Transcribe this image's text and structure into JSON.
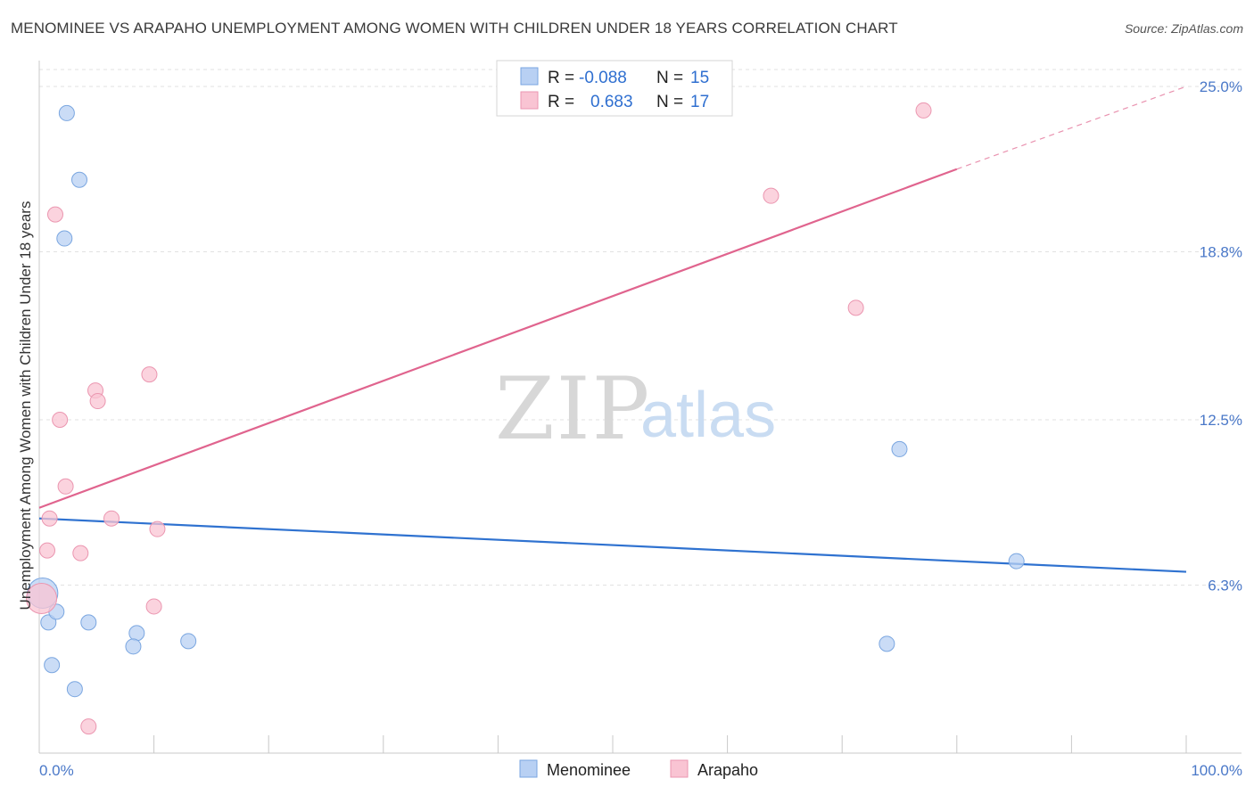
{
  "title": "MENOMINEE VS ARAPAHO UNEMPLOYMENT AMONG WOMEN WITH CHILDREN UNDER 18 YEARS CORRELATION CHART",
  "source": "Source: ZipAtlas.com",
  "watermark": {
    "zip": "ZIP",
    "atlas": "atlas"
  },
  "colors": {
    "menominee_fill": "#b8d0f3",
    "menominee_stroke": "#7aa6e0",
    "menominee_line": "#2f72d0",
    "arapaho_fill": "#f9c4d3",
    "arapaho_stroke": "#eb96b0",
    "arapaho_line": "#e0648e",
    "tick_text": "#4a78c8",
    "grid": "#e2e2e2"
  },
  "legend": {
    "rows": [
      {
        "r_label": "R =",
        "r_value": "-0.088",
        "n_label": "N =",
        "n_value": "15"
      },
      {
        "r_label": "R =",
        "r_value": "0.683",
        "n_label": "N =",
        "n_value": "17"
      }
    ]
  },
  "chart_data": {
    "type": "scatter",
    "title": "MENOMINEE VS ARAPAHO UNEMPLOYMENT AMONG WOMEN WITH CHILDREN UNDER 18 YEARS CORRELATION CHART",
    "xlabel": "",
    "ylabel": "Unemployment Among Women with Children Under 18 years",
    "xlim": [
      0,
      100
    ],
    "ylim": [
      0,
      25.5
    ],
    "x_tick_labels": [
      "0.0%",
      "100.0%"
    ],
    "y_ticks": [
      6.3,
      12.5,
      18.8,
      25.0
    ],
    "y_tick_labels": [
      "6.3%",
      "12.5%",
      "18.8%",
      "25.0%"
    ],
    "grid": true,
    "legend_position": "bottom-center",
    "series": [
      {
        "name": "Menominee",
        "points": [
          {
            "x": 2.4,
            "y": 24.0
          },
          {
            "x": 3.5,
            "y": 21.5
          },
          {
            "x": 2.2,
            "y": 19.3
          },
          {
            "x": 0.3,
            "y": 6.0,
            "large": true
          },
          {
            "x": 0.8,
            "y": 4.9
          },
          {
            "x": 1.5,
            "y": 5.3
          },
          {
            "x": 4.3,
            "y": 4.9
          },
          {
            "x": 8.5,
            "y": 4.5
          },
          {
            "x": 8.2,
            "y": 4.0
          },
          {
            "x": 13.0,
            "y": 4.2
          },
          {
            "x": 1.1,
            "y": 3.3
          },
          {
            "x": 3.1,
            "y": 2.4
          },
          {
            "x": 75.0,
            "y": 11.4
          },
          {
            "x": 85.2,
            "y": 7.2
          },
          {
            "x": 73.9,
            "y": 4.1
          }
        ],
        "trend": {
          "x": [
            0,
            100
          ],
          "y": [
            8.8,
            6.8
          ],
          "dashed_extension": false
        }
      },
      {
        "name": "Arapaho",
        "points": [
          {
            "x": 77.1,
            "y": 24.1
          },
          {
            "x": 63.8,
            "y": 20.9
          },
          {
            "x": 1.4,
            "y": 20.2
          },
          {
            "x": 71.2,
            "y": 16.7
          },
          {
            "x": 9.6,
            "y": 14.2
          },
          {
            "x": 4.9,
            "y": 13.6
          },
          {
            "x": 5.1,
            "y": 13.2
          },
          {
            "x": 1.8,
            "y": 12.5
          },
          {
            "x": 2.3,
            "y": 10.0
          },
          {
            "x": 0.9,
            "y": 8.8
          },
          {
            "x": 6.3,
            "y": 8.8
          },
          {
            "x": 10.3,
            "y": 8.4
          },
          {
            "x": 0.7,
            "y": 7.6
          },
          {
            "x": 3.6,
            "y": 7.5
          },
          {
            "x": 0.2,
            "y": 5.8,
            "large": true
          },
          {
            "x": 10.0,
            "y": 5.5
          },
          {
            "x": 4.3,
            "y": 1.0
          }
        ],
        "trend": {
          "x": [
            0,
            80
          ],
          "y": [
            9.2,
            21.9
          ],
          "dashed_extension": {
            "x": [
              80,
              100
            ],
            "y": [
              21.9,
              25.0
            ]
          }
        }
      }
    ]
  }
}
